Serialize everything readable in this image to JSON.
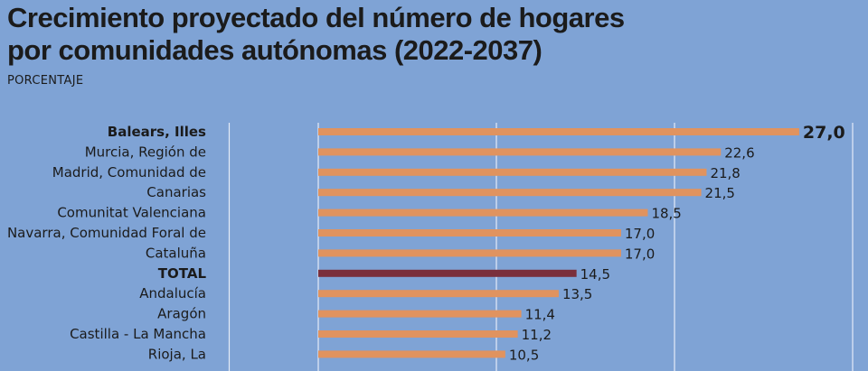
{
  "header": {
    "title_line1": "Crecimiento proyectado del número de hogares",
    "title_line2": "por comunidades autónomas (2022-2037)",
    "subtitle": "PORCENTAJE"
  },
  "colors": {
    "background": "#7fa3d5",
    "bar": "#e0935f",
    "highlight_bar": "#7a2f3c",
    "gridline": "#e4ecf7",
    "text": "#1b1b1b"
  },
  "chart_data": {
    "type": "bar",
    "orientation": "horizontal",
    "title": "Crecimiento proyectado del número de hogares por comunidades autónomas (2022-2037)",
    "subtitle": "PORCENTAJE",
    "categories": [
      "Balears, Illes",
      "Murcia, Región de",
      "Madrid, Comunidad de",
      "Canarias",
      "Comunitat Valenciana",
      "Navarra, Comunidad Foral de",
      "Cataluña",
      "TOTAL",
      "Andalucía",
      "Aragón",
      "Castilla - La Mancha",
      "Rioja, La"
    ],
    "values": [
      27.0,
      22.6,
      21.8,
      21.5,
      18.5,
      17.0,
      17.0,
      14.5,
      13.5,
      11.4,
      11.2,
      10.5
    ],
    "value_labels": [
      "27,0",
      "22,6",
      "21,8",
      "21,5",
      "18,5",
      "17,0",
      "17,0",
      "14,5",
      "13,5",
      "11,4",
      "11,2",
      "10,5"
    ],
    "bold_categories": [
      "Balears, Illes",
      "TOTAL"
    ],
    "highlight_category": "TOTAL",
    "xlim": [
      0,
      30
    ],
    "gridlines_at": [
      -5,
      0,
      10,
      20,
      30
    ],
    "grid": true,
    "xlabel": "",
    "ylabel": ""
  }
}
